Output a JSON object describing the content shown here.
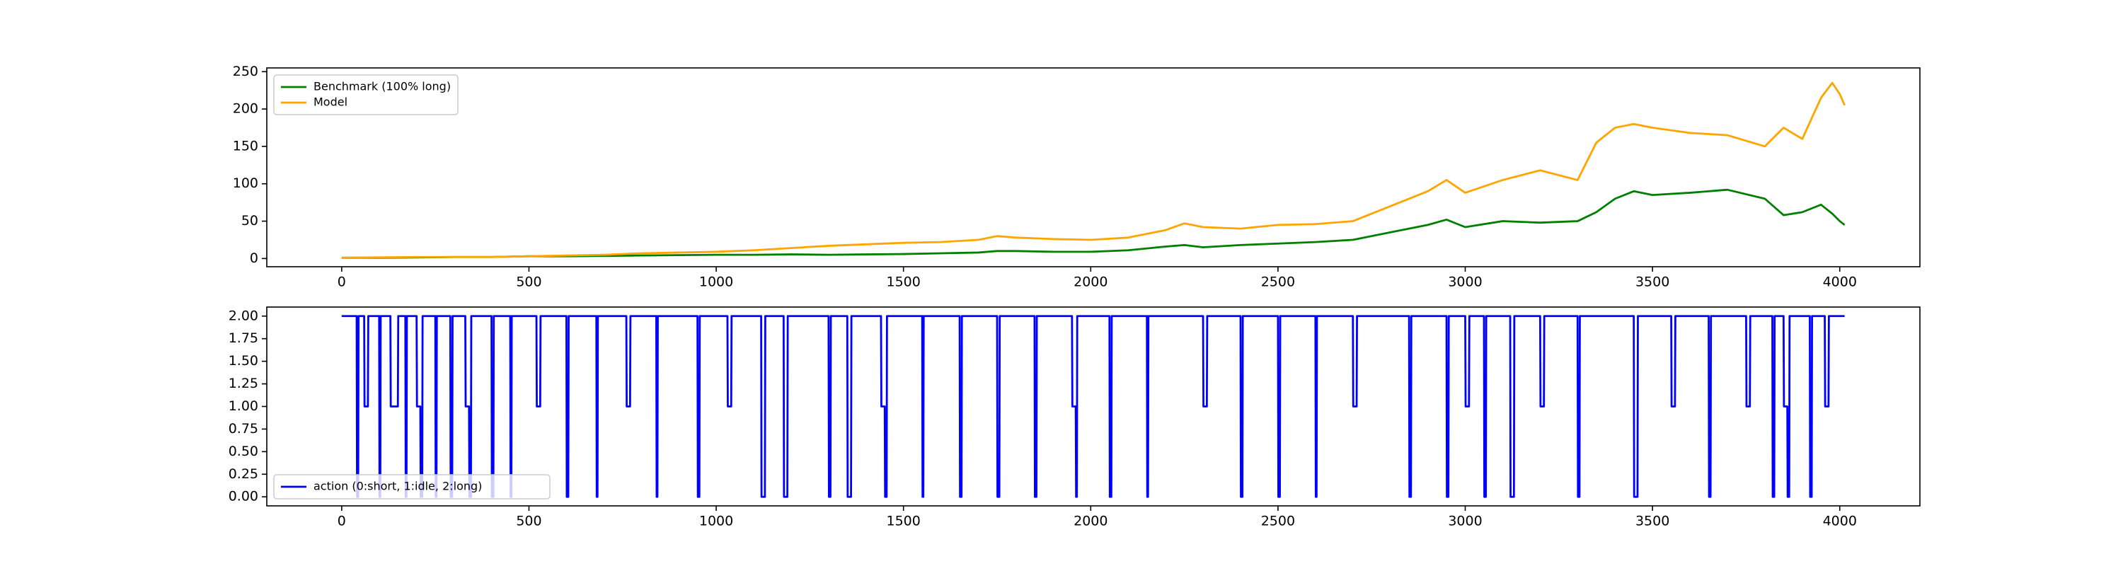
{
  "chart_data": [
    {
      "type": "line",
      "x": [
        0,
        100,
        200,
        300,
        400,
        500,
        600,
        700,
        800,
        900,
        1000,
        1100,
        1200,
        1300,
        1400,
        1500,
        1600,
        1700,
        1750,
        1800,
        1900,
        2000,
        2100,
        2200,
        2250,
        2300,
        2400,
        2500,
        2600,
        2700,
        2800,
        2900,
        2950,
        3000,
        3100,
        3200,
        3300,
        3350,
        3400,
        3450,
        3500,
        3600,
        3700,
        3800,
        3850,
        3900,
        3950,
        3980,
        4000,
        4013
      ],
      "series": [
        {
          "name": "Benchmark (100% long)",
          "color": "#008000",
          "values": [
            1,
            1,
            1.5,
            2,
            2,
            3,
            3,
            3.5,
            4,
            4.5,
            5,
            5,
            5.5,
            5,
            5.5,
            6,
            7,
            8,
            10,
            10,
            9,
            9,
            11,
            16,
            18,
            15,
            18,
            20,
            22,
            25,
            35,
            45,
            52,
            42,
            50,
            48,
            50,
            62,
            80,
            90,
            85,
            88,
            92,
            80,
            58,
            62,
            72,
            60,
            50,
            45
          ]
        },
        {
          "name": "Model",
          "color": "#ffa500",
          "values": [
            1,
            1.5,
            2,
            2,
            2,
            3,
            4,
            5,
            7,
            8,
            9,
            11,
            14,
            17,
            19,
            21,
            22,
            25,
            30,
            28,
            26,
            25,
            28,
            38,
            47,
            42,
            40,
            45,
            46,
            50,
            70,
            90,
            105,
            88,
            105,
            118,
            105,
            155,
            175,
            180,
            175,
            168,
            165,
            150,
            175,
            160,
            215,
            235,
            220,
            205
          ]
        }
      ],
      "xlim": [
        -200,
        4214
      ],
      "xticks": [
        0,
        500,
        1000,
        1500,
        2000,
        2500,
        3000,
        3500,
        4000
      ],
      "ylim": [
        -11,
        255
      ],
      "yticks": [
        0,
        50,
        100,
        150,
        200,
        250
      ],
      "legend": "upper left"
    },
    {
      "type": "line",
      "x": [
        0,
        40,
        41,
        44,
        45,
        60,
        61,
        70,
        71,
        100,
        101,
        103,
        104,
        130,
        131,
        150,
        151,
        170,
        171,
        173,
        174,
        200,
        201,
        210,
        211,
        215,
        216,
        250,
        251,
        253,
        254,
        290,
        291,
        295,
        296,
        330,
        331,
        340,
        341,
        345,
        346,
        400,
        401,
        405,
        406,
        450,
        451,
        453,
        454,
        520,
        521,
        530,
        531,
        600,
        601,
        605,
        606,
        680,
        681,
        683,
        684,
        760,
        761,
        770,
        771,
        840,
        841,
        843,
        844,
        950,
        951,
        955,
        956,
        1030,
        1031,
        1040,
        1041,
        1120,
        1121,
        1130,
        1131,
        1180,
        1181,
        1190,
        1191,
        1300,
        1301,
        1305,
        1306,
        1350,
        1351,
        1360,
        1361,
        1440,
        1441,
        1450,
        1451,
        1455,
        1456,
        1550,
        1551,
        1553,
        1554,
        1650,
        1651,
        1655,
        1656,
        1750,
        1751,
        1756,
        1757,
        1850,
        1851,
        1855,
        1856,
        1950,
        1951,
        1960,
        1961,
        1963,
        1964,
        2050,
        2051,
        2055,
        2056,
        2150,
        2151,
        2153,
        2154,
        2300,
        2301,
        2310,
        2311,
        2400,
        2401,
        2405,
        2406,
        2500,
        2501,
        2505,
        2506,
        2600,
        2601,
        2603,
        2604,
        2700,
        2701,
        2710,
        2711,
        2850,
        2851,
        2855,
        2856,
        2950,
        2951,
        2955,
        2956,
        3000,
        3001,
        3010,
        3011,
        3050,
        3051,
        3055,
        3056,
        3120,
        3121,
        3130,
        3131,
        3200,
        3201,
        3210,
        3211,
        3300,
        3301,
        3305,
        3306,
        3450,
        3451,
        3460,
        3461,
        3550,
        3551,
        3560,
        3561,
        3650,
        3651,
        3655,
        3656,
        3750,
        3751,
        3760,
        3761,
        3820,
        3821,
        3825,
        3826,
        3850,
        3851,
        3860,
        3861,
        3865,
        3866,
        3920,
        3921,
        3925,
        3926,
        3960,
        3961,
        3970,
        3971,
        4013
      ],
      "series": [
        {
          "name": "action (0:short, 1:idle, 2:long)",
          "color": "#0000ff",
          "values": [
            2,
            2,
            0,
            0,
            2,
            2,
            1,
            1,
            2,
            2,
            0,
            0,
            2,
            2,
            1,
            1,
            2,
            2,
            0,
            0,
            2,
            2,
            1,
            1,
            0,
            0,
            2,
            2,
            0,
            0,
            2,
            2,
            0,
            0,
            2,
            2,
            1,
            1,
            0,
            0,
            2,
            2,
            0,
            0,
            2,
            2,
            0,
            0,
            2,
            2,
            1,
            1,
            2,
            2,
            0,
            0,
            2,
            2,
            0,
            0,
            2,
            2,
            1,
            1,
            2,
            2,
            0,
            0,
            2,
            2,
            0,
            0,
            2,
            2,
            1,
            1,
            2,
            2,
            0,
            0,
            2,
            2,
            0,
            0,
            2,
            2,
            0,
            0,
            2,
            2,
            0,
            0,
            2,
            2,
            1,
            1,
            0,
            0,
            2,
            2,
            0,
            0,
            2,
            2,
            0,
            0,
            2,
            2,
            0,
            0,
            2,
            2,
            0,
            0,
            2,
            2,
            1,
            1,
            0,
            0,
            2,
            2,
            0,
            0,
            2,
            2,
            0,
            0,
            2,
            2,
            1,
            1,
            2,
            2,
            0,
            0,
            2,
            2,
            0,
            0,
            2,
            2,
            0,
            0,
            2,
            2,
            1,
            1,
            2,
            2,
            0,
            0,
            2,
            2,
            0,
            0,
            2,
            2,
            1,
            1,
            2,
            2,
            0,
            0,
            2,
            2,
            0,
            0,
            2,
            2,
            1,
            1,
            2,
            2,
            0,
            0,
            2,
            2,
            0,
            0,
            2,
            2,
            1,
            1,
            2,
            2,
            0,
            0,
            2,
            2,
            1,
            1,
            2,
            2,
            0,
            0,
            2,
            2,
            1,
            1,
            0,
            0,
            2,
            2,
            0,
            0,
            2,
            2,
            1,
            1,
            2,
            2
          ]
        }
      ],
      "xlim": [
        -200,
        4214
      ],
      "xticks": [
        0,
        500,
        1000,
        1500,
        2000,
        2500,
        3000,
        3500,
        4000
      ],
      "ylim": [
        -0.1,
        2.1
      ],
      "yticks": [
        {
          "value": 0,
          "label": "0.00"
        },
        {
          "value": 0.25,
          "label": "0.25"
        },
        {
          "value": 0.5,
          "label": "0.50"
        },
        {
          "value": 0.75,
          "label": "0.75"
        },
        {
          "value": 1,
          "label": "1.00"
        },
        {
          "value": 1.25,
          "label": "1.25"
        },
        {
          "value": 1.5,
          "label": "1.50"
        },
        {
          "value": 1.75,
          "label": "1.75"
        },
        {
          "value": 2,
          "label": "2.00"
        }
      ],
      "legend": "lower left"
    }
  ]
}
